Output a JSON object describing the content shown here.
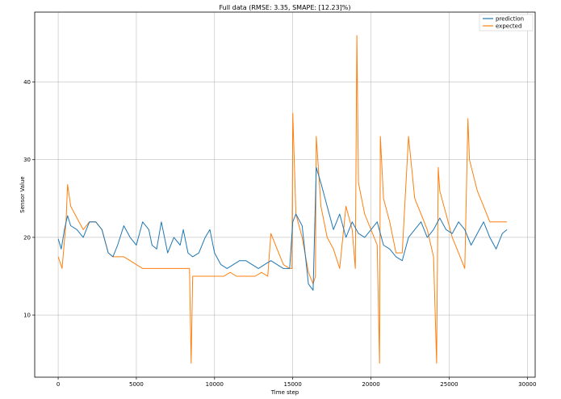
{
  "chart_data": {
    "type": "line",
    "title": "Full data (RMSE: 3.35, SMAPE: [12.23]%)",
    "xlabel": "Time step",
    "ylabel": "Sensor Value",
    "xlim": [
      -1500,
      30500
    ],
    "ylim": [
      2,
      49
    ],
    "xticks": [
      0,
      5000,
      10000,
      15000,
      20000,
      25000,
      30000
    ],
    "yticks": [
      10,
      20,
      30,
      40
    ],
    "grid": true,
    "legend_position": "top-right",
    "colors": {
      "prediction": "#1f77b4",
      "expected": "#ff7f0e"
    },
    "series": [
      {
        "name": "prediction",
        "x": [
          0,
          200,
          400,
          600,
          800,
          1200,
          1600,
          2000,
          2400,
          2800,
          3200,
          3500,
          3800,
          4200,
          4600,
          5000,
          5400,
          5800,
          6000,
          6300,
          6600,
          7000,
          7400,
          7800,
          8000,
          8300,
          8600,
          9000,
          9400,
          9700,
          10000,
          10400,
          10800,
          11200,
          11600,
          12000,
          12400,
          12800,
          13200,
          13600,
          14000,
          14400,
          14800,
          15000,
          15200,
          15600,
          16000,
          16300,
          16500,
          16800,
          17200,
          17600,
          18000,
          18400,
          18800,
          19200,
          19600,
          20000,
          20400,
          20800,
          21200,
          21600,
          22000,
          22400,
          22800,
          23200,
          23600,
          24000,
          24400,
          24800,
          25200,
          25600,
          26000,
          26400,
          26800,
          27200,
          27600,
          28000,
          28400,
          28700
        ],
        "values": [
          19.8,
          18.5,
          21,
          22.8,
          21.5,
          21,
          20,
          22,
          22,
          21,
          18,
          17.5,
          19,
          21.5,
          20,
          19,
          22,
          21,
          19,
          18.5,
          22,
          18,
          20,
          19,
          21,
          18,
          17.5,
          18,
          20,
          21,
          18,
          16.5,
          16,
          16.5,
          17,
          17,
          16.5,
          16,
          16.5,
          17,
          16.5,
          16,
          16,
          22,
          23,
          21.5,
          14,
          13.2,
          29,
          27,
          24,
          21,
          23,
          20,
          22,
          20.5,
          20,
          21,
          22,
          19,
          18.5,
          17.5,
          17,
          20,
          21,
          22,
          20,
          21,
          22.5,
          21,
          20.5,
          22,
          21,
          19,
          20.5,
          22,
          20,
          18.5,
          20.5,
          21
        ]
      },
      {
        "name": "expected",
        "x": [
          0,
          250,
          500,
          600,
          800,
          1200,
          1600,
          2000,
          2400,
          2800,
          3200,
          3500,
          3800,
          4200,
          4600,
          5000,
          5400,
          5800,
          6200,
          6600,
          7000,
          7400,
          7800,
          8200,
          8400,
          8500,
          8600,
          9000,
          9400,
          9800,
          10200,
          10600,
          11000,
          11400,
          11800,
          12200,
          12600,
          13000,
          13400,
          13600,
          14000,
          14400,
          14800,
          14950,
          15000,
          15200,
          15600,
          16000,
          16300,
          16450,
          16500,
          16800,
          17200,
          17600,
          18000,
          18400,
          18800,
          19000,
          19100,
          19200,
          19600,
          20000,
          20400,
          20550,
          20600,
          20800,
          21200,
          21600,
          22000,
          22400,
          22800,
          23200,
          23600,
          24000,
          24200,
          24300,
          24400,
          24800,
          25200,
          25600,
          26000,
          26200,
          26300,
          26800,
          27200,
          27600,
          28000,
          28300,
          28600,
          28700
        ],
        "values": [
          17.5,
          16,
          22,
          26.8,
          24,
          22.5,
          21,
          22,
          22,
          21,
          18,
          17.5,
          17.5,
          17.5,
          17,
          16.5,
          16,
          16,
          16,
          16,
          16,
          16,
          16,
          16,
          16,
          3.8,
          15,
          15,
          15,
          15,
          15,
          15,
          15.5,
          15,
          15,
          15,
          15,
          15.5,
          15,
          20.5,
          18.5,
          16.5,
          16,
          16,
          36,
          23,
          20,
          15.5,
          14,
          15,
          33,
          24,
          20,
          18.5,
          16,
          24,
          21,
          16,
          46,
          27,
          23,
          21,
          19,
          3.8,
          33,
          25,
          22,
          18,
          18,
          33,
          25,
          23,
          21,
          17.5,
          3.8,
          29,
          26,
          23,
          20,
          18,
          16,
          35.3,
          30,
          26,
          24,
          22,
          22,
          22,
          22,
          22
        ]
      }
    ]
  }
}
